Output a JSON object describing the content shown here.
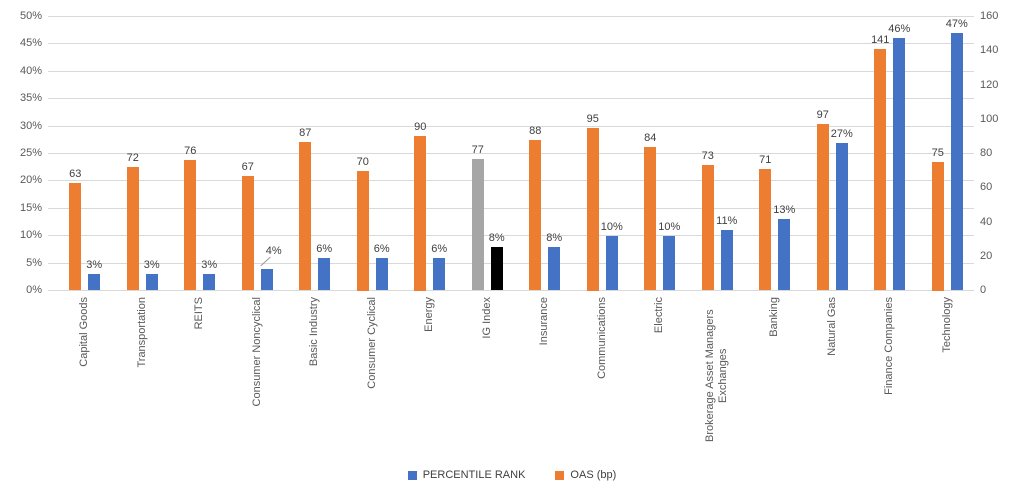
{
  "chart_data": {
    "type": "bar",
    "title": "",
    "categories": [
      "Capital Goods",
      "Transportation",
      "REITS",
      "Consumer Noncyclical",
      "Basic Industry",
      "Consumer Cyclical",
      "Energy",
      "IG Index",
      "Insurance",
      "Communications",
      "Electric",
      "Brokerage Asset Managers Exchanges",
      "Banking",
      "Natural Gas",
      "Finance Companies",
      "Technology"
    ],
    "series": [
      {
        "name": "PERCENTILE RANK",
        "axis": "left",
        "color": "#4472C4",
        "unit": "%",
        "values": [
          3,
          3,
          3,
          4,
          6,
          6,
          6,
          8,
          8,
          10,
          10,
          11,
          13,
          27,
          46,
          47
        ]
      },
      {
        "name": "OAS (bp)",
        "axis": "right",
        "color": "#ED7D31",
        "unit": "",
        "values": [
          63,
          72,
          76,
          67,
          87,
          70,
          90,
          77,
          88,
          95,
          84,
          73,
          71,
          97,
          141,
          75
        ]
      }
    ],
    "highlight": {
      "category": "IG Index",
      "oas_color": "#A6A6A6",
      "percentile_color": "#000000"
    },
    "left_axis": {
      "min": 0,
      "max": 50,
      "step": 5,
      "suffix": "%",
      "ticks": [
        "0%",
        "5%",
        "10%",
        "15%",
        "20%",
        "25%",
        "30%",
        "35%",
        "40%",
        "45%",
        "50%"
      ]
    },
    "right_axis": {
      "min": 0,
      "max": 160,
      "step": 20,
      "ticks": [
        "0",
        "20",
        "40",
        "60",
        "80",
        "100",
        "120",
        "140",
        "160"
      ]
    },
    "legend": [
      "PERCENTILE RANK",
      "OAS (bp)"
    ],
    "legend_position": "bottom",
    "grid": true,
    "annotations": {
      "leader_line_category": "Consumer Noncyclical"
    }
  },
  "colors": {
    "grid": "#D9D9D9",
    "axis_text": "#595959",
    "data_label_text": "#404040",
    "background": "#FFFFFF",
    "percentile_blue": "#4472C4",
    "oas_orange": "#ED7D31",
    "index_gray": "#A6A6A6",
    "index_black": "#000000"
  }
}
